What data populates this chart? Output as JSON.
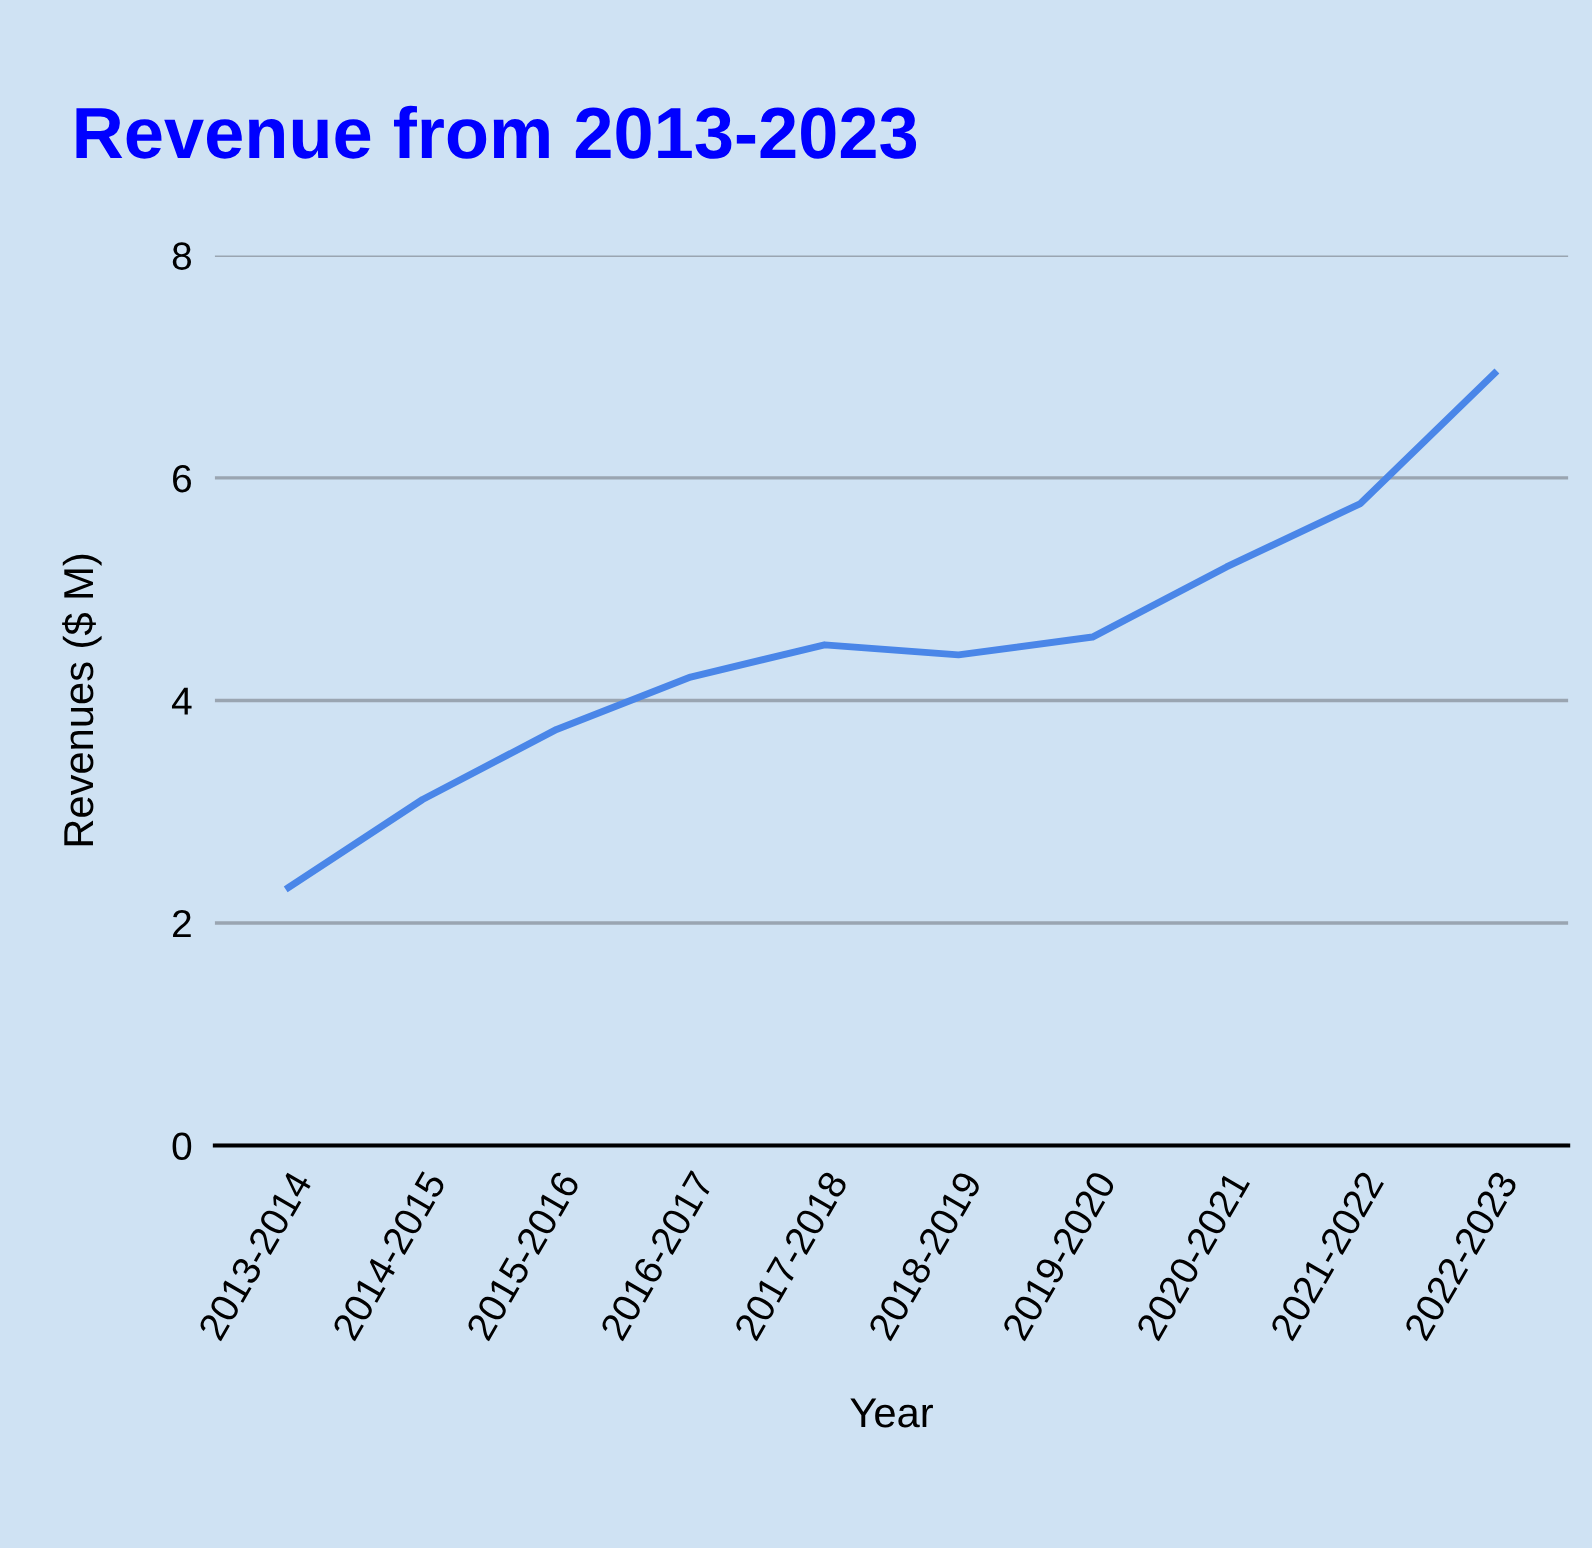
{
  "chart_data": {
    "type": "line",
    "title": "Revenue from 2013-2023",
    "xlabel": "Year",
    "ylabel": "Revenues ($ M)",
    "categories": [
      "2013-2014",
      "2014-2015",
      "2015-2016",
      "2016-2017",
      "2017-2018",
      "2018-2019",
      "2019-2020",
      "2020-2021",
      "2021-2022",
      "2022-2023"
    ],
    "series": [
      {
        "color": "#4a86e8",
        "values": [
          2.32,
          3.11,
          3.74,
          4.21,
          4.5,
          4.41,
          4.57,
          5.2,
          5.77,
          6.94
        ]
      }
    ],
    "ylim": [
      0,
      8
    ],
    "yticks": [
      0,
      2,
      4,
      6,
      8
    ],
    "grid": "y",
    "legend": false,
    "marker": "none",
    "line_style": "solid"
  }
}
